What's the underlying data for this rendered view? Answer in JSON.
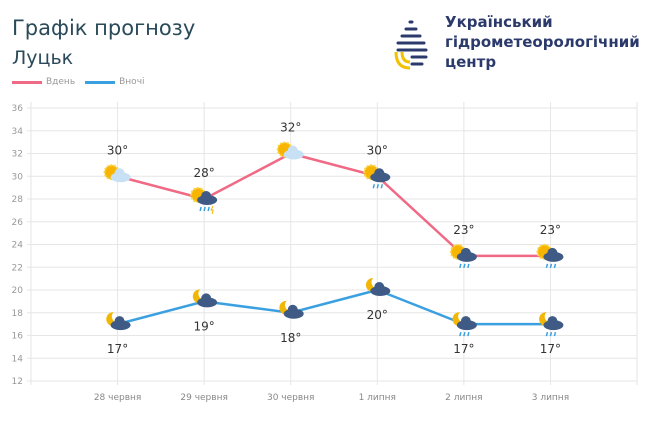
{
  "header": {
    "title": "Графік прогнозу",
    "city": "Луцьк",
    "org": [
      "Український",
      "гідрометеорологічний",
      "центр"
    ]
  },
  "chart_data": {
    "type": "line",
    "categories": [
      "28 червня",
      "29 червня",
      "30 червня",
      "1 липня",
      "2 липня",
      "3 липня"
    ],
    "series": [
      {
        "name": "Вдень",
        "color": "#f06a85",
        "values": [
          30,
          28,
          32,
          30,
          23,
          23
        ],
        "labels": [
          "30°",
          "28°",
          "32°",
          "30°",
          "23°",
          "23°"
        ],
        "icons": [
          "sun-cloud",
          "sun-thunderstorm",
          "sun-cloud",
          "sun-rain",
          "sun-rain",
          "sun-rain"
        ]
      },
      {
        "name": "Вночі",
        "color": "#3aa0e0",
        "values": [
          17,
          19,
          18,
          20,
          17,
          17
        ],
        "labels": [
          "17°",
          "19°",
          "18°",
          "20°",
          "17°",
          "17°"
        ],
        "icons": [
          "moon-cloud",
          "moon-cloud",
          "moon-cloud",
          "moon-cloud",
          "moon-rain",
          "moon-rain"
        ]
      }
    ],
    "ylim": [
      12,
      36
    ],
    "yticks": [
      12,
      14,
      16,
      18,
      20,
      22,
      24,
      26,
      28,
      30,
      32,
      34,
      36
    ],
    "grid": true,
    "legend": "top-left"
  }
}
